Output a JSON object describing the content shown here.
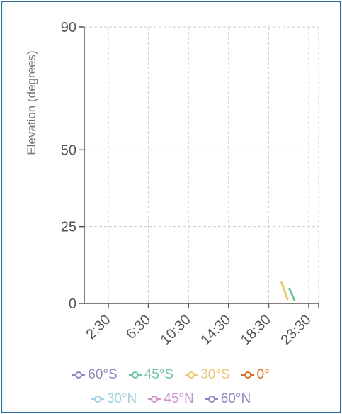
{
  "chart_data": {
    "type": "line",
    "title": "",
    "xlabel": "",
    "ylabel": "Elevation (degrees)",
    "ylim": [
      0,
      90
    ],
    "y_ticks": [
      0,
      25,
      50,
      90
    ],
    "x_ticks": [
      "2:30",
      "6:30",
      "10:30",
      "14:30",
      "18:30",
      "23:30"
    ],
    "x_range_hours": [
      0,
      24
    ],
    "grid": true,
    "legend_placement": "bottom",
    "series": [
      {
        "name": "60°S",
        "color": "#8f85c6",
        "x": [],
        "y": []
      },
      {
        "name": "45°S",
        "color": "#6fc6a0",
        "x": [
          21.0,
          21.5
        ],
        "y": [
          4.8,
          1.2
        ]
      },
      {
        "name": "30°S",
        "color": "#f3c86c",
        "x": [
          20.2,
          20.8
        ],
        "y": [
          6.8,
          1.4
        ]
      },
      {
        "name": "0°",
        "color": "#e06f1f",
        "x": [],
        "y": []
      },
      {
        "name": "30°N",
        "color": "#9ed3e3",
        "x": [],
        "y": []
      },
      {
        "name": "45°N",
        "color": "#cf8fcf",
        "x": [],
        "y": []
      },
      {
        "name": "60°N",
        "color": "#8f85c6",
        "x": [],
        "y": []
      }
    ]
  }
}
